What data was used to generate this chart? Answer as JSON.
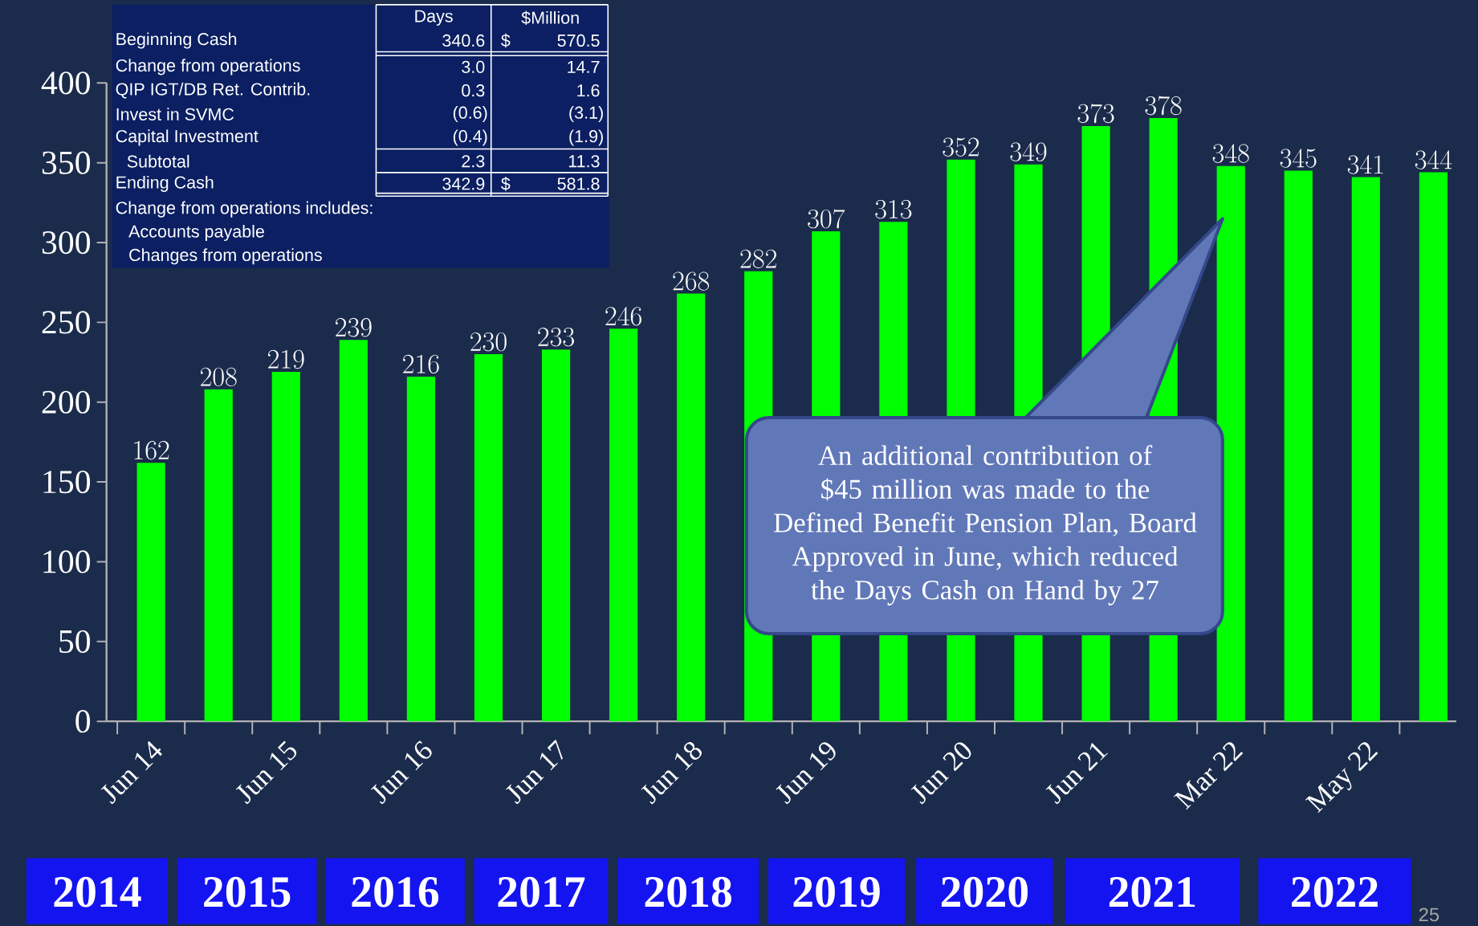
{
  "chart_data": {
    "type": "bar",
    "categories": [
      "Jun 14",
      null,
      "Jun 15",
      null,
      "Jun 16",
      null,
      "Jun 17",
      null,
      "Jun 18",
      null,
      "Jun 19",
      null,
      "Jun 20",
      null,
      "Jun 21",
      null,
      "Mar 22",
      null,
      "May 22",
      null
    ],
    "values": [
      162,
      208,
      219,
      239,
      216,
      230,
      233,
      246,
      268,
      282,
      307,
      313,
      352,
      349,
      373,
      378,
      348,
      345,
      341,
      344
    ],
    "color": "#00ff00",
    "data_labels": true,
    "ylim": [
      0,
      400
    ],
    "yticks": [
      0,
      50,
      100,
      150,
      200,
      250,
      300,
      350,
      400
    ],
    "annotations": [
      "Days",
      "$Million",
      "Beginning Cash",
      "340.6",
      "$",
      "570.5",
      "Change from operations",
      "3.0",
      "14.7",
      "QIP IGT/DB Ret. Contrib.",
      "0.3",
      "1.6",
      "Invest in SVMC",
      "(0.6)",
      "(3.1)",
      "Capital Investment",
      "(0.4)",
      "(1.9)",
      "Subtotal",
      "2.3",
      "11.3",
      "Ending Cash",
      "342.9",
      "$",
      "581.8",
      "Change from operations includes:",
      "Accounts payable",
      "Changes from operations",
      "An additional contribution of $45 million was made to the Defined Benefit Pension Plan, Board Approved in June, which reduced the Days Cash on Hand by 27",
      "2014",
      "2015",
      "2016",
      "2017",
      "2018",
      "2019",
      "2020",
      "2021",
      "2022",
      "25"
    ]
  }
}
